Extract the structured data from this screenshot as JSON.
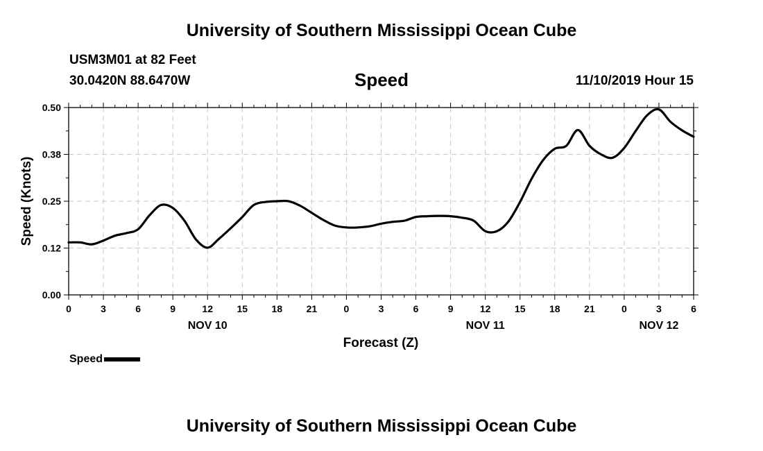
{
  "header": {
    "title_top": "University of Southern Mississippi Ocean Cube",
    "station": "USM3M01 at 82 Feet",
    "coords": "30.0420N 88.6470W",
    "variable": "Speed",
    "issued": "11/10/2019 Hour 15"
  },
  "footer": {
    "title_bottom": "University of Southern Mississippi Ocean Cube"
  },
  "legend": {
    "label": "Speed",
    "color": "#000000"
  },
  "chart_data": {
    "type": "line",
    "xlabel": "Forecast (Z)",
    "ylabel": "Speed (Knots)",
    "ylim": [
      0,
      0.5
    ],
    "yticks": [
      "0.00",
      "0.12",
      "0.25",
      "0.38",
      "0.50"
    ],
    "xticks": [
      "0",
      "3",
      "6",
      "9",
      "12",
      "15",
      "18",
      "21",
      "0",
      "3",
      "6",
      "9",
      "12",
      "15",
      "18",
      "21",
      "0",
      "3",
      "6"
    ],
    "day_labels": [
      {
        "label": "NOV 10",
        "hour": 12
      },
      {
        "label": "NOV 11",
        "hour": 36
      },
      {
        "label": "NOV 12",
        "hour": 51
      }
    ],
    "grid": true,
    "series": [
      {
        "name": "Speed",
        "x": [
          0,
          1,
          2,
          3,
          4,
          5,
          6,
          7,
          8,
          9,
          10,
          11,
          12,
          13,
          14,
          15,
          16,
          17,
          18,
          19,
          20,
          21,
          22,
          23,
          24,
          25,
          26,
          27,
          28,
          29,
          30,
          31,
          32,
          33,
          34,
          35,
          36,
          37,
          38,
          39,
          40,
          41,
          42,
          43,
          44,
          45,
          46,
          47,
          48,
          49,
          50,
          51,
          52,
          53,
          54
        ],
        "values": [
          0.14,
          0.14,
          0.135,
          0.145,
          0.158,
          0.165,
          0.175,
          0.213,
          0.24,
          0.232,
          0.198,
          0.148,
          0.126,
          0.15,
          0.178,
          0.208,
          0.24,
          0.248,
          0.25,
          0.25,
          0.238,
          0.219,
          0.2,
          0.185,
          0.18,
          0.18,
          0.183,
          0.19,
          0.195,
          0.198,
          0.208,
          0.21,
          0.211,
          0.21,
          0.206,
          0.198,
          0.17,
          0.17,
          0.196,
          0.248,
          0.31,
          0.36,
          0.39,
          0.398,
          0.44,
          0.398,
          0.375,
          0.366,
          0.392,
          0.438,
          0.48,
          0.495,
          0.462,
          0.439,
          0.422
        ]
      }
    ]
  }
}
